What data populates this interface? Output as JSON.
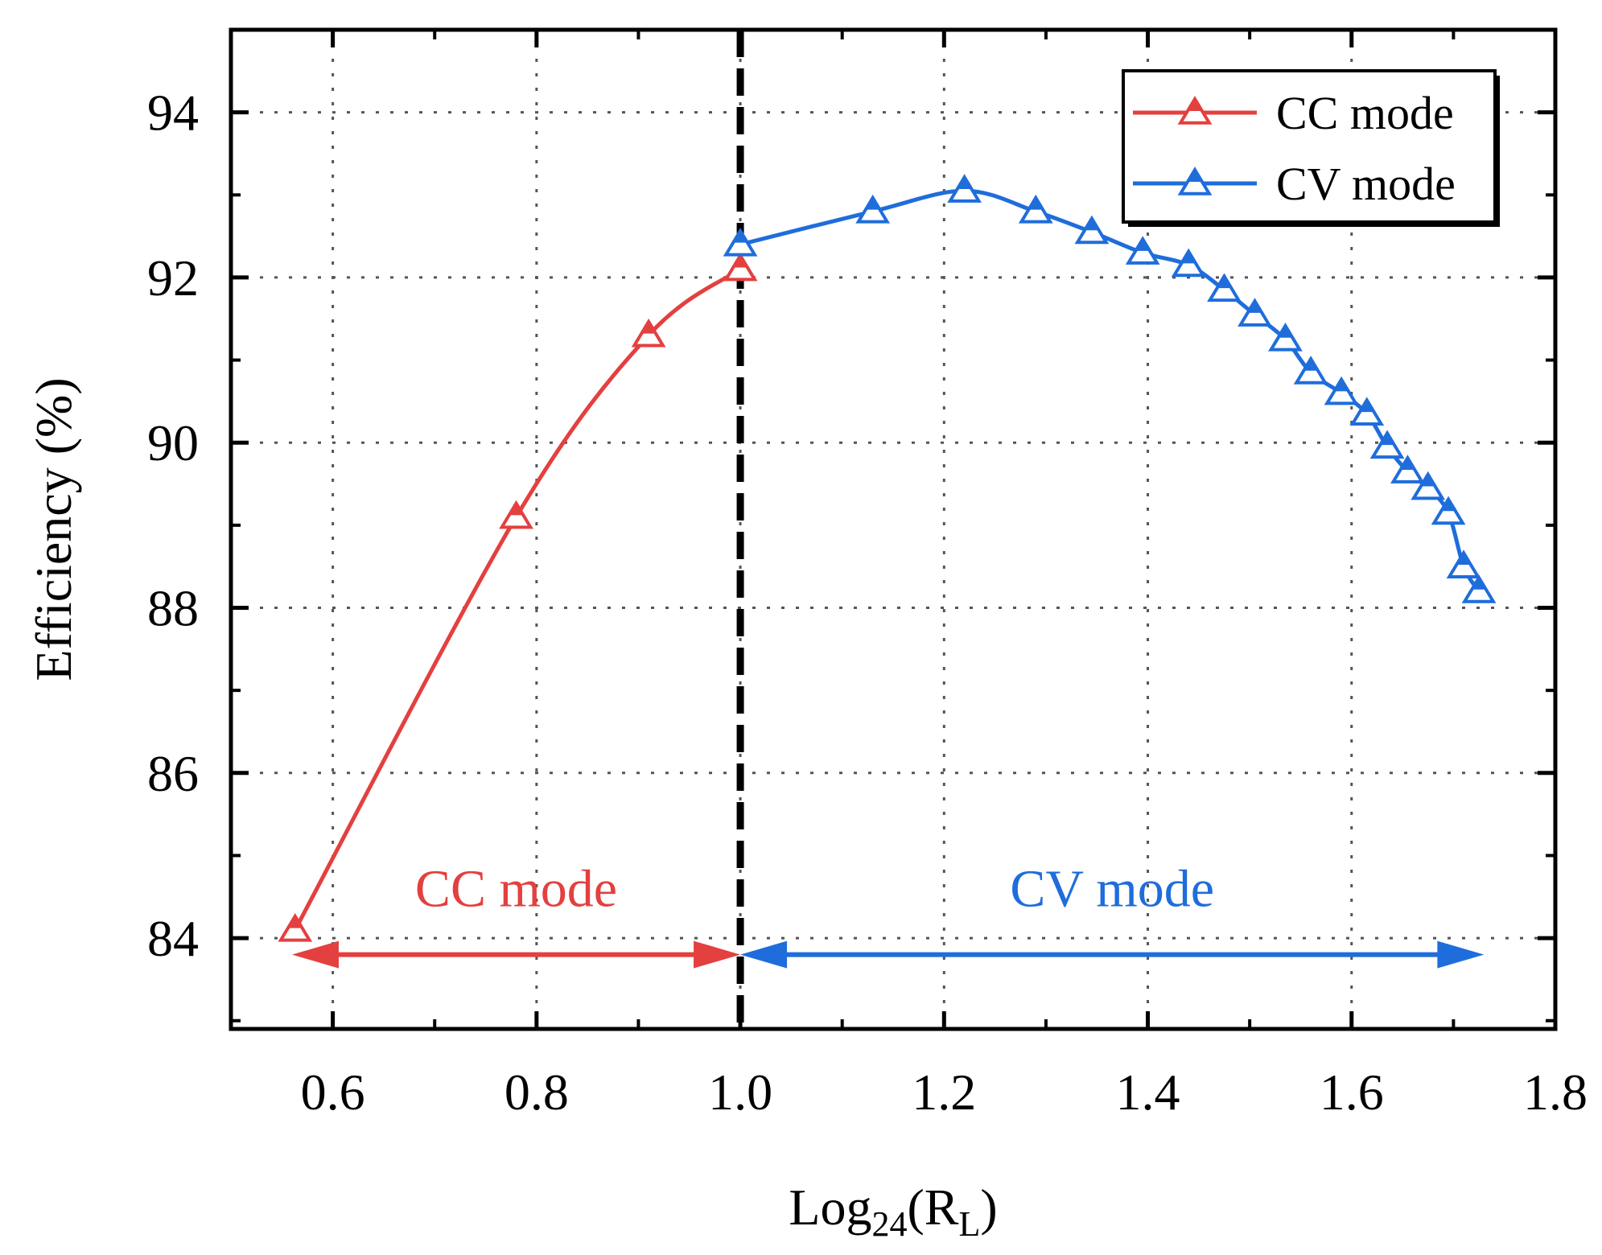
{
  "chart_data": {
    "type": "line",
    "xlabel": {
      "prefix": "Log",
      "sub": "24",
      "mid": "(R",
      "sub2": "L",
      "suffix": ")"
    },
    "ylabel": "Efficiency (%)",
    "xlim": [
      0.5,
      1.8
    ],
    "ylim": [
      82.9,
      95.0
    ],
    "xticks": [
      0.6,
      0.8,
      1.0,
      1.2,
      1.4,
      1.6,
      1.8
    ],
    "xtick_labels": [
      "0.6",
      "0.8",
      "1.0",
      "1.2",
      "1.4",
      "1.6",
      "1.8"
    ],
    "yticks": [
      84,
      86,
      88,
      90,
      92,
      94
    ],
    "ytick_labels": [
      "84",
      "86",
      "88",
      "90",
      "92",
      "94"
    ],
    "grid": true,
    "legend_position": "top-right",
    "divider_x": 1.0,
    "series": [
      {
        "name": "CC mode",
        "color": "#e3403f",
        "marker": "triangle",
        "x": [
          0.563,
          0.78,
          0.91,
          1.0
        ],
        "y": [
          84.1,
          89.1,
          91.3,
          92.1
        ]
      },
      {
        "name": "CV mode",
        "color": "#1f6ddb",
        "marker": "triangle",
        "x": [
          1.0,
          1.13,
          1.22,
          1.29,
          1.345,
          1.395,
          1.44,
          1.475,
          1.505,
          1.535,
          1.56,
          1.59,
          1.615,
          1.635,
          1.655,
          1.675,
          1.695,
          1.71,
          1.725
        ],
        "y": [
          92.4,
          92.8,
          93.05,
          92.8,
          92.55,
          92.3,
          92.15,
          91.85,
          91.55,
          91.25,
          90.85,
          90.6,
          90.35,
          89.95,
          89.65,
          89.45,
          89.15,
          88.5,
          88.2
        ]
      }
    ],
    "annotations": [
      {
        "text": "CC mode",
        "color": "#e3403f",
        "x_start": 0.56,
        "x_end": 1.0,
        "y": 83.8
      },
      {
        "text": "CV mode",
        "color": "#1f6ddb",
        "x_start": 1.0,
        "x_end": 1.73,
        "y": 83.8
      }
    ]
  }
}
